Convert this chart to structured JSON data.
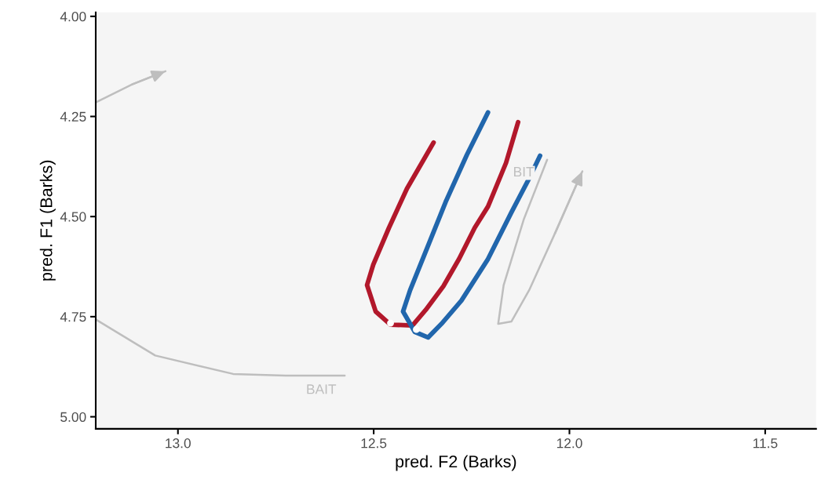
{
  "chart_data": {
    "type": "line",
    "xlabel": "pred. F2 (Barks)",
    "ylabel": "pred. F1 (Barks)",
    "xlim": [
      13.21,
      11.37
    ],
    "xticks": [
      {
        "value": 13.0,
        "label": "13.0"
      },
      12.5,
      {
        "value": 12.0,
        "label": "12.0"
      },
      11.5
    ],
    "ylim": [
      5.03,
      3.99
    ],
    "yticks": [
      {
        "value": 4.0,
        "label": "4.00"
      },
      4.25,
      {
        "value": 4.5,
        "label": "4.50"
      },
      4.75,
      {
        "value": 5.0,
        "label": "5.00"
      }
    ],
    "grid": false,
    "legend": false,
    "series": [
      {
        "color": "#bebebe",
        "x": [
          12.574,
          12.725,
          12.859,
          13.058,
          13.21,
          null,
          13.21,
          13.117,
          13.032
        ],
        "values": [
          4.897,
          4.897,
          4.893,
          4.847,
          4.757,
          null,
          4.215,
          4.17,
          4.137
        ]
      },
      {
        "color": "#bebebe",
        "x": [
          12.057,
          12.117,
          12.168,
          12.182,
          12.148,
          12.103,
          12.037,
          11.967
        ],
        "values": [
          4.358,
          4.508,
          4.671,
          4.768,
          4.762,
          4.684,
          4.542,
          4.387
        ]
      },
      {
        "color": "#b2182b",
        "x": [
          12.347,
          12.415,
          12.461,
          12.501,
          12.517,
          12.495,
          12.457,
          12.401,
          12.367,
          12.322,
          12.282,
          12.242,
          12.208,
          12.162,
          12.131
        ],
        "values": [
          4.315,
          4.43,
          4.528,
          4.62,
          4.671,
          4.737,
          4.77,
          4.772,
          4.733,
          4.674,
          4.606,
          4.528,
          4.475,
          4.366,
          4.264
        ]
      },
      {
        "color": "#2166ac",
        "x": [
          12.208,
          12.262,
          12.316,
          12.367,
          12.407,
          12.425,
          12.395,
          12.361,
          12.327,
          12.276,
          12.208,
          12.148,
          12.103,
          12.075
        ],
        "values": [
          4.24,
          4.346,
          4.463,
          4.587,
          4.684,
          4.737,
          4.788,
          4.802,
          4.768,
          4.71,
          4.606,
          4.489,
          4.405,
          4.348
        ]
      },
      {
        "type": "scatter",
        "color": "#ffffff",
        "x": [
          12.457,
          12.391
        ],
        "values": [
          4.766,
          4.782
        ]
      }
    ],
    "annotations": [
      "BAIT",
      "BIT"
    ]
  }
}
